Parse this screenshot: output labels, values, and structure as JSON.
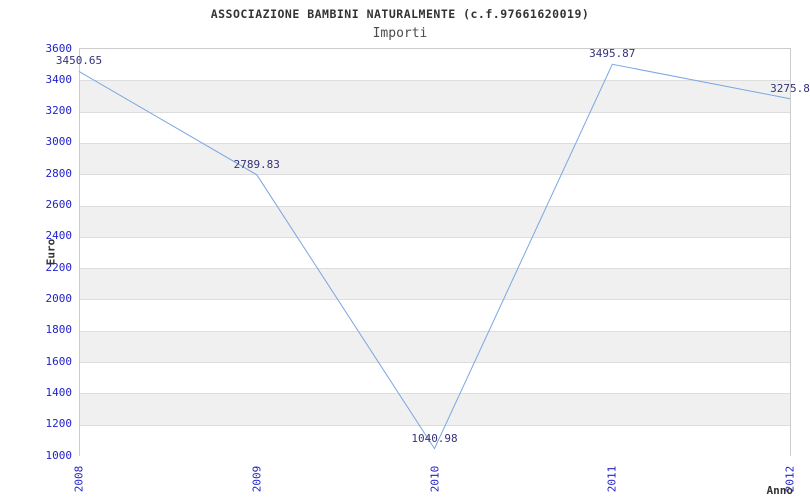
{
  "header": {
    "title": "ASSOCIAZIONE BAMBINI NATURALMENTE (c.f.97661620019)",
    "subtitle": "Importi"
  },
  "chart_data": {
    "type": "line",
    "title": "ASSOCIAZIONE BAMBINI NATURALMENTE (c.f.97661620019)",
    "subtitle": "Importi",
    "xlabel": "Anno",
    "ylabel": "Euro",
    "categories": [
      "2008",
      "2009",
      "2010",
      "2011",
      "2012"
    ],
    "series": [
      {
        "name": "Importi",
        "values": [
          3450.65,
          2789.83,
          1040.98,
          3495.87,
          3275.8
        ],
        "point_labels": [
          "3450.65",
          "2789.83",
          "1040.98",
          "3495.87",
          "3275.8"
        ]
      }
    ],
    "ylim": [
      1000,
      3600
    ],
    "ytick_step": 200,
    "ytick_labels": [
      "3600",
      "3400",
      "3200",
      "3000",
      "2800",
      "2600",
      "2400",
      "2200",
      "2000",
      "1800",
      "1600",
      "1400",
      "1200",
      "1000"
    ],
    "grid": "horizontal-bands-alternating",
    "legend": "none",
    "colors": {
      "line": "#7aa7e2",
      "tick_label": "#2222cc",
      "point_label": "#333377",
      "band_white": "#ffffff",
      "band_gray": "#f0f0f0",
      "gridline": "#dddddd",
      "plot_border": "#cccccc",
      "title": "#333333",
      "subtitle": "#4d4d4d",
      "axis_title": "#333333"
    }
  }
}
